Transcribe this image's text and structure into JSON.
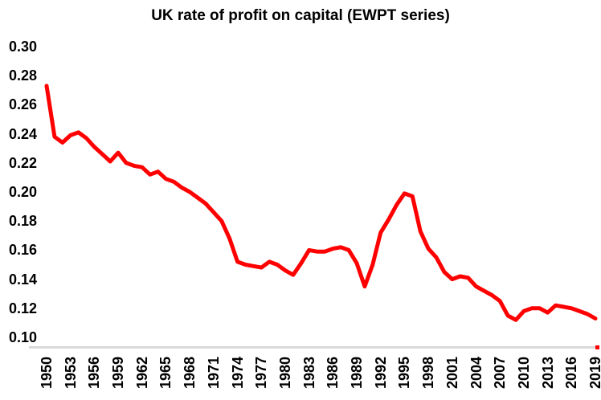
{
  "title": "UK rate of profit on capital (EWPT series)",
  "colors": {
    "background": "#FFFFFF",
    "text": "#000000",
    "line": "#FF0000",
    "axis_line": "#D9D9D9"
  },
  "chart_data": {
    "type": "line",
    "title": "UK rate of profit on capital (EWPT series)",
    "xlabel": "",
    "ylabel": "",
    "grid": false,
    "legend_position": "none",
    "ylim": [
      0.1,
      0.3
    ],
    "y_tick_labels": [
      "0.30",
      "0.28",
      "0.26",
      "0.24",
      "0.22",
      "0.20",
      "0.18",
      "0.16",
      "0.14",
      "0.12",
      "0.10"
    ],
    "x_tick_labels": [
      "1950",
      "1953",
      "1956",
      "1959",
      "1962",
      "1965",
      "1968",
      "1971",
      "1974",
      "1977",
      "1980",
      "1983",
      "1986",
      "1989",
      "1992",
      "1995",
      "1998",
      "2001",
      "2004",
      "2007",
      "2010",
      "2013",
      "2016",
      "2019"
    ],
    "x": [
      1950,
      1951,
      1952,
      1953,
      1954,
      1955,
      1956,
      1957,
      1958,
      1959,
      1960,
      1961,
      1962,
      1963,
      1964,
      1965,
      1966,
      1967,
      1968,
      1969,
      1970,
      1971,
      1972,
      1973,
      1974,
      1975,
      1976,
      1977,
      1978,
      1979,
      1980,
      1981,
      1982,
      1983,
      1984,
      1985,
      1986,
      1987,
      1988,
      1989,
      1990,
      1991,
      1992,
      1993,
      1994,
      1995,
      1996,
      1997,
      1998,
      1999,
      2000,
      2001,
      2002,
      2003,
      2004,
      2005,
      2006,
      2007,
      2008,
      2009,
      2010,
      2011,
      2012,
      2013,
      2014,
      2015,
      2016,
      2017,
      2018,
      2019
    ],
    "series": [
      {
        "name": "UK rate of profit on capital",
        "color": "#FF0000",
        "values": [
          0.273,
          0.238,
          0.234,
          0.239,
          0.241,
          0.237,
          0.231,
          0.226,
          0.221,
          0.227,
          0.22,
          0.218,
          0.217,
          0.212,
          0.214,
          0.209,
          0.207,
          0.203,
          0.2,
          0.196,
          0.192,
          0.186,
          0.18,
          0.168,
          0.152,
          0.15,
          0.149,
          0.148,
          0.152,
          0.15,
          0.146,
          0.143,
          0.151,
          0.16,
          0.159,
          0.159,
          0.161,
          0.162,
          0.16,
          0.151,
          0.135,
          0.15,
          0.172,
          0.181,
          0.191,
          0.199,
          0.197,
          0.173,
          0.161,
          0.155,
          0.145,
          0.14,
          0.142,
          0.141,
          0.135,
          0.132,
          0.129,
          0.125,
          0.115,
          0.112,
          0.118,
          0.12,
          0.12,
          0.117,
          0.122,
          0.121,
          0.12,
          0.118,
          0.116,
          0.113
        ]
      }
    ]
  }
}
